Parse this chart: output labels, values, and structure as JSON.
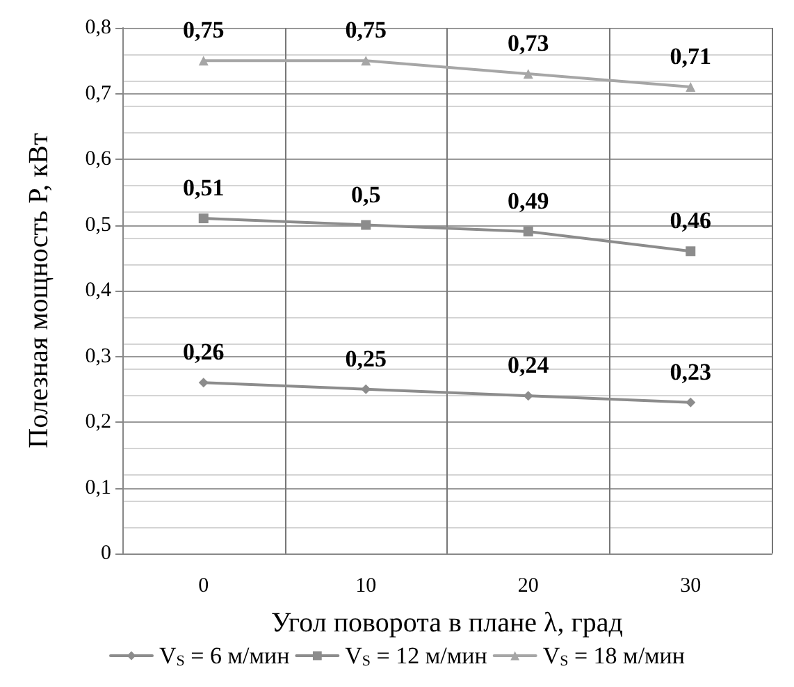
{
  "chart_data": {
    "type": "line",
    "xlabel": "Угол поворота в плане λ, град",
    "ylabel": "Полезная мощность P, кВт",
    "categories": [
      "0",
      "10",
      "20",
      "30"
    ],
    "series": [
      {
        "name": "V$_{S}$ = 6 м/мин",
        "color": "#8c8c8c",
        "marker": "diamond",
        "values": [
          0.26,
          0.25,
          0.24,
          0.23
        ],
        "value_labels": [
          "0,26",
          "0,25",
          "0,24",
          "0,23"
        ]
      },
      {
        "name": "V$_{S}$ = 12 м/мин",
        "color": "#8c8c8c",
        "marker": "square",
        "values": [
          0.51,
          0.5,
          0.49,
          0.46
        ],
        "value_labels": [
          "0,51",
          "0,5",
          "0,49",
          "0,46"
        ]
      },
      {
        "name": "V$_{S}$ = 18 м/мин",
        "color": "#a6a6a6",
        "marker": "triangle",
        "values": [
          0.75,
          0.75,
          0.73,
          0.71
        ],
        "value_labels": [
          "0,75",
          "0,75",
          "0,73",
          "0,71"
        ]
      }
    ],
    "ylim": [
      0,
      0.8
    ],
    "yticks": [
      0,
      {
        "value": 0.1,
        "label": "0,1"
      },
      {
        "value": 0.2,
        "label": "0,2"
      },
      {
        "value": 0.3,
        "label": "0,3"
      },
      {
        "value": 0.4,
        "label": "0,4"
      },
      {
        "value": 0.5,
        "label": "0,5"
      },
      {
        "value": 0.6,
        "label": "0,6"
      },
      {
        "value": 0.7,
        "label": "0,7"
      },
      {
        "value": 0.8,
        "label": "0,8"
      }
    ],
    "grid": true,
    "legend": "bottom"
  }
}
